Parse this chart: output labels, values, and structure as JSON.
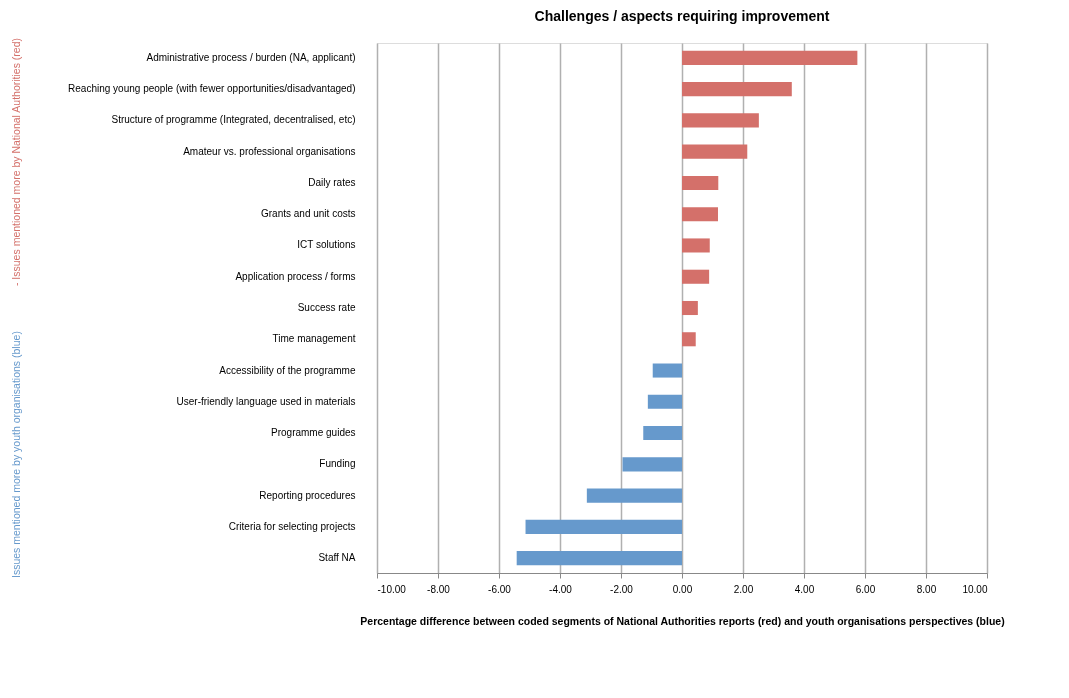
{
  "chart_data": {
    "type": "bar",
    "orientation": "horizontal",
    "title": "Challenges / aspects requiring improvement",
    "xlabel": "Percentage difference between coded segments of National Authorities reports (red) and youth organisations perspectives (blue)",
    "ylabel": "Issues mentioned more by youth organisations (blue)  -  Issues mentioned more by National Authorities (red)",
    "categories": [
      "Administrative process / burden (NA, applicant)",
      "Reaching young people (with fewer opportunities/disadvantaged)",
      "Structure of programme (Integrated, decentralised, etc)",
      "Amateur vs. professional organisations",
      "Daily rates",
      "Grants and unit costs",
      "ICT solutions",
      "Application process / forms",
      "Success rate",
      "Time management",
      "Accessibility of the programme",
      "User-friendly language used in materials",
      "Programme guides",
      "Funding",
      "Reporting procedures",
      "Criteria for selecting projects",
      "Staff NA"
    ],
    "values": [
      5.75,
      3.6,
      2.52,
      2.14,
      1.19,
      1.18,
      0.91,
      0.89,
      0.52,
      0.45,
      -0.96,
      -1.12,
      -1.27,
      -1.95,
      -3.12,
      -5.13,
      -5.42
    ],
    "colors": [
      "#d4706a",
      "#d4706a",
      "#d4706a",
      "#d4706a",
      "#d4706a",
      "#d4706a",
      "#d4706a",
      "#d4706a",
      "#d4706a",
      "#d4706a",
      "#6699cc",
      "#6699cc",
      "#6699cc",
      "#6699cc",
      "#6699cc",
      "#6699cc",
      "#6699cc"
    ],
    "xlim": [
      -10,
      10
    ],
    "xticks": [
      {
        "value": -10,
        "label": "-10.00"
      },
      {
        "value": -8,
        "label": "-8.00"
      },
      {
        "value": -6,
        "label": "-6.00"
      },
      {
        "value": -4,
        "label": "-4.00"
      },
      {
        "value": -2,
        "label": "-2.00"
      },
      {
        "value": 0,
        "label": "0.00"
      },
      {
        "value": 2,
        "label": "2.00"
      },
      {
        "value": 4,
        "label": "4.00"
      },
      {
        "value": 6,
        "label": "6.00"
      },
      {
        "value": 8,
        "label": "8.00"
      },
      {
        "value": 10,
        "label": "10.00"
      }
    ],
    "grid": "x"
  }
}
